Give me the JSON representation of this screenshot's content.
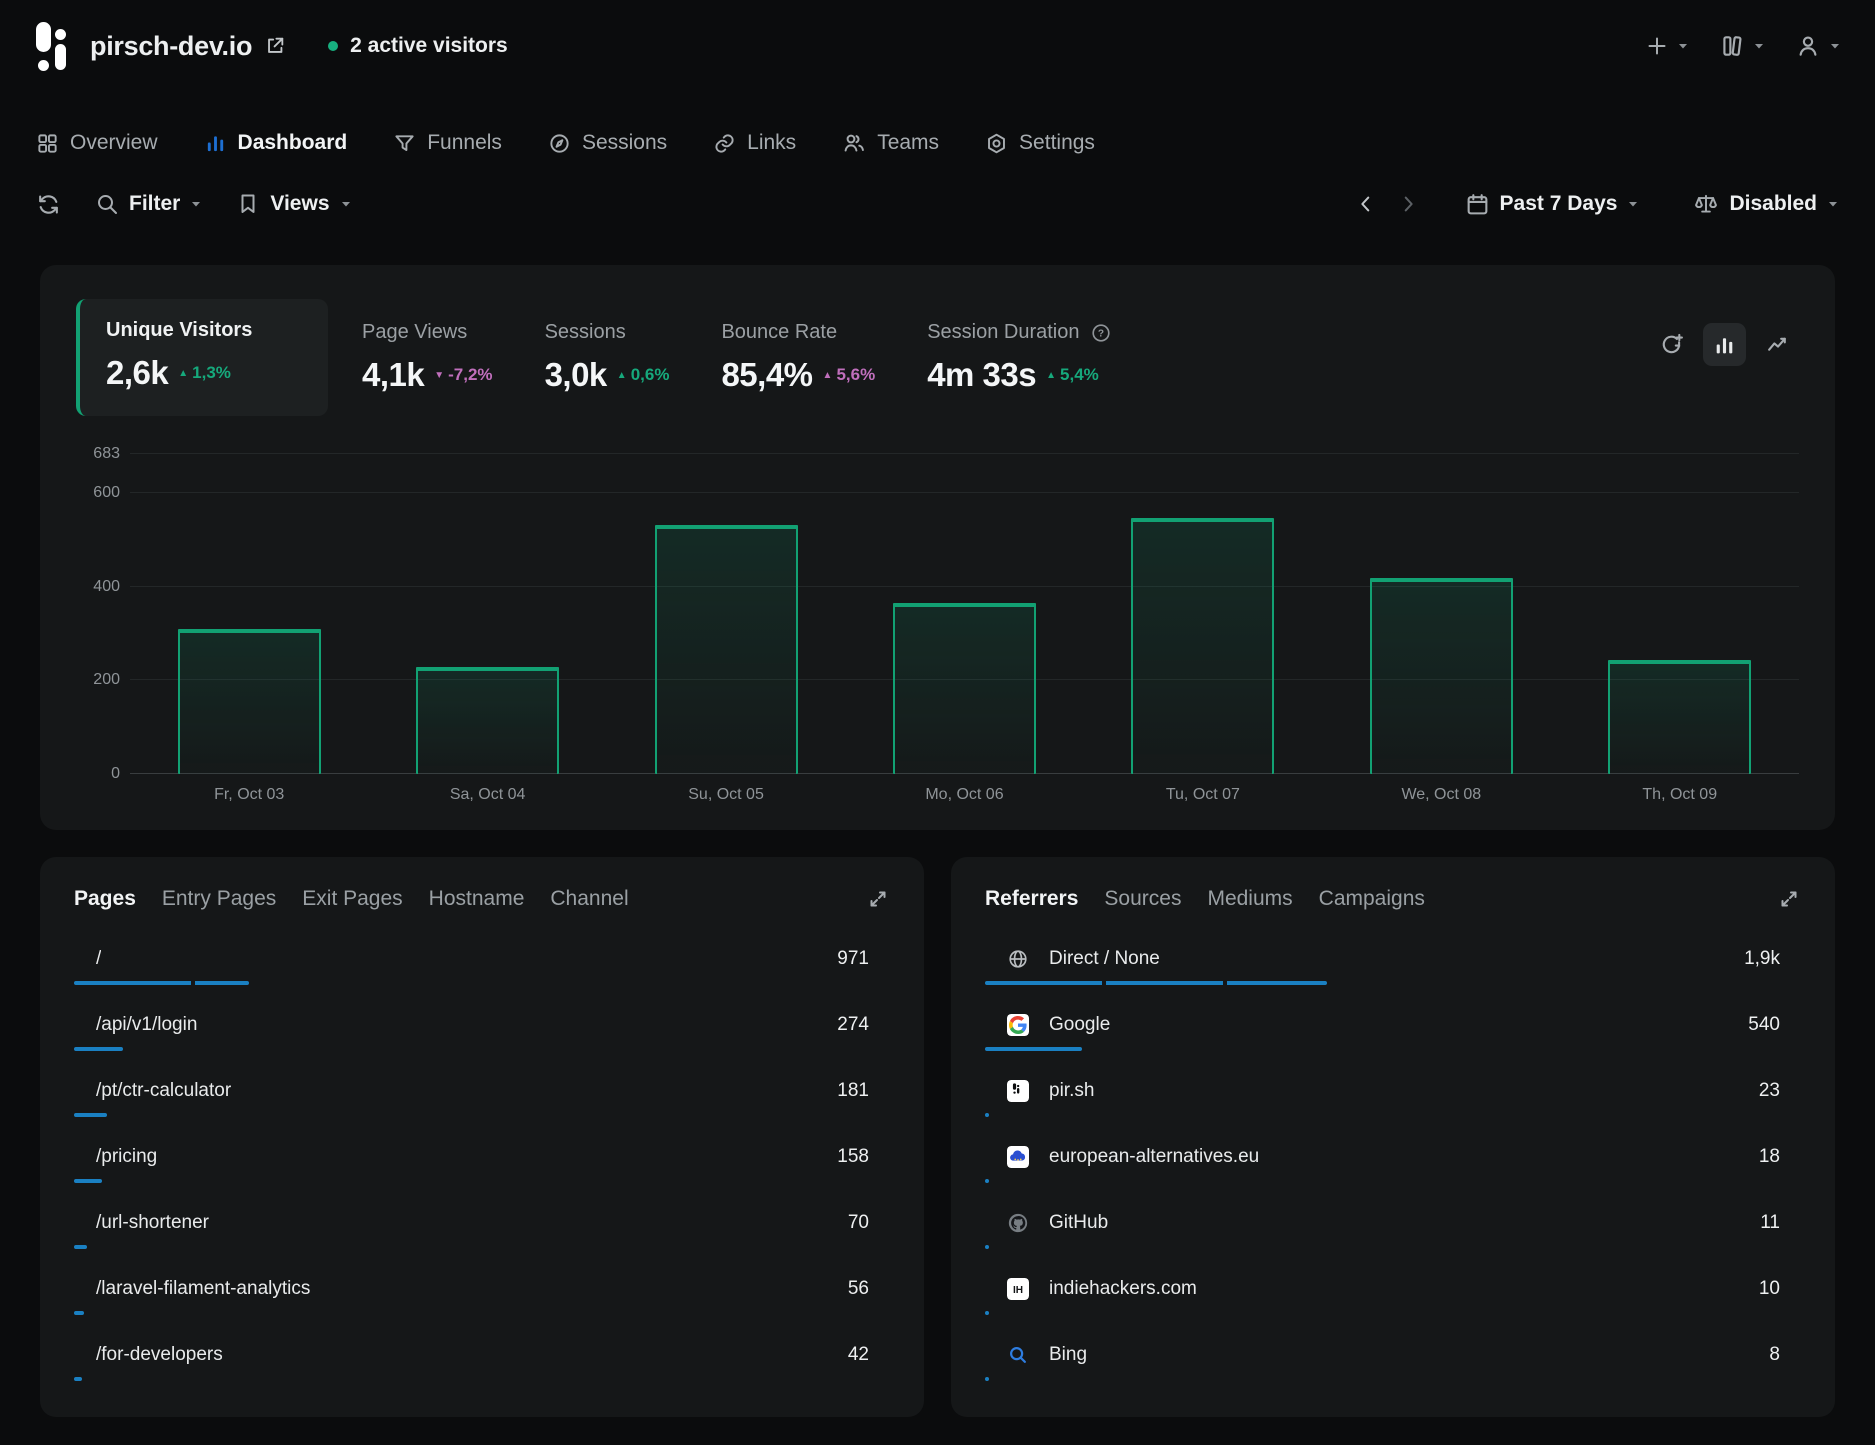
{
  "header": {
    "site_name": "pirsch-dev.io",
    "active_visitors": "2 active visitors"
  },
  "nav": [
    {
      "label": "Overview",
      "icon": "grid-icon",
      "active": false
    },
    {
      "label": "Dashboard",
      "icon": "dashboard-icon",
      "active": true
    },
    {
      "label": "Funnels",
      "icon": "funnel-icon",
      "active": false
    },
    {
      "label": "Sessions",
      "icon": "sessions-icon",
      "active": false
    },
    {
      "label": "Links",
      "icon": "links-icon",
      "active": false
    },
    {
      "label": "Teams",
      "icon": "teams-icon",
      "active": false
    },
    {
      "label": "Settings",
      "icon": "settings-icon",
      "active": false
    }
  ],
  "toolbar": {
    "filter_label": "Filter",
    "views_label": "Views",
    "date_range": "Past 7 Days",
    "comparison": "Disabled"
  },
  "stats": [
    {
      "label": "Unique Visitors",
      "value": "2,6k",
      "delta": "1,3%",
      "direction": "up",
      "sentiment": "good",
      "active": true,
      "help": false
    },
    {
      "label": "Page Views",
      "value": "4,1k",
      "delta": "-7,2%",
      "direction": "down",
      "sentiment": "bad",
      "active": false,
      "help": false
    },
    {
      "label": "Sessions",
      "value": "3,0k",
      "delta": "0,6%",
      "direction": "up",
      "sentiment": "good",
      "active": false,
      "help": false
    },
    {
      "label": "Bounce Rate",
      "value": "85,4%",
      "delta": "5,6%",
      "direction": "up",
      "sentiment": "bad",
      "active": false,
      "help": false
    },
    {
      "label": "Session Duration",
      "value": "4m 33s",
      "delta": "5,4%",
      "direction": "up",
      "sentiment": "good",
      "active": false,
      "help": true
    }
  ],
  "chart_data": {
    "type": "bar",
    "title": "Unique Visitors",
    "categories": [
      "Fr, Oct 03",
      "Sa, Oct 04",
      "Su, Oct 05",
      "Mo, Oct 06",
      "Tu, Oct 07",
      "We, Oct 08",
      "Th, Oct 09"
    ],
    "values": [
      309,
      228,
      531,
      366,
      546,
      418,
      243
    ],
    "yticks": [
      683,
      600,
      400,
      200,
      0
    ],
    "ylim": [
      0,
      683
    ],
    "xlabel": "",
    "ylabel": "",
    "grid": "horizontal",
    "legend": "none",
    "bar_color": "#12a173"
  },
  "pages_panel": {
    "tabs": [
      {
        "label": "Pages",
        "active": true
      },
      {
        "label": "Entry Pages",
        "active": false
      },
      {
        "label": "Exit Pages",
        "active": false
      },
      {
        "label": "Hostname",
        "active": false
      },
      {
        "label": "Channel",
        "active": false
      }
    ],
    "rows": [
      {
        "label": "/",
        "value": "971",
        "n": 971
      },
      {
        "label": "/api/v1/login",
        "value": "274",
        "n": 274
      },
      {
        "label": "/pt/ctr-calculator",
        "value": "181",
        "n": 181
      },
      {
        "label": "/pricing",
        "value": "158",
        "n": 158
      },
      {
        "label": "/url-shortener",
        "value": "70",
        "n": 70
      },
      {
        "label": "/laravel-filament-analytics",
        "value": "56",
        "n": 56
      },
      {
        "label": "/for-developers",
        "value": "42",
        "n": 42
      }
    ]
  },
  "referrers_panel": {
    "tabs": [
      {
        "label": "Referrers",
        "active": true
      },
      {
        "label": "Sources",
        "active": false
      },
      {
        "label": "Mediums",
        "active": false
      },
      {
        "label": "Campaigns",
        "active": false
      }
    ],
    "rows": [
      {
        "label": "Direct / None",
        "value": "1,9k",
        "n": 1900,
        "icon": "globe-icon"
      },
      {
        "label": "Google",
        "value": "540",
        "n": 540,
        "icon": "google-icon"
      },
      {
        "label": "pir.sh",
        "value": "23",
        "n": 23,
        "icon": "pirsh-icon"
      },
      {
        "label": "european-alternatives.eu",
        "value": "18",
        "n": 18,
        "icon": "european-alternatives-icon"
      },
      {
        "label": "GitHub",
        "value": "11",
        "n": 11,
        "icon": "github-icon"
      },
      {
        "label": "indiehackers.com",
        "value": "10",
        "n": 10,
        "icon": "indiehackers-icon"
      },
      {
        "label": "Bing",
        "value": "8",
        "n": 8,
        "icon": "bing-icon"
      }
    ]
  },
  "colors": {
    "accent_green": "#12a173",
    "negative_pink": "#c06fbc",
    "bar_blue": "#1a80c2",
    "nav_active_blue": "#1d6fd2",
    "live_dot_green": "#17b07f"
  }
}
